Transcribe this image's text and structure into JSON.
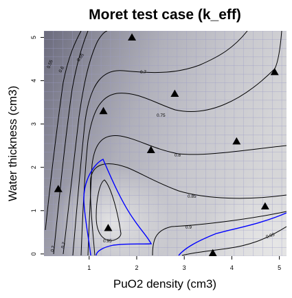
{
  "chart_data": {
    "type": "contour",
    "title": "Moret test case (k_eff)",
    "xlabel": "PuO2 density (cm3)",
    "ylabel": "Water thickness (cm3)",
    "xlim": [
      0.05,
      5.15
    ],
    "ylim": [
      -0.05,
      5.15
    ],
    "x_ticks": [
      1,
      2,
      3,
      4,
      5
    ],
    "y_ticks": [
      0,
      1,
      2,
      3,
      4,
      5
    ],
    "grid": true,
    "background": "grayscale gradient, darker at low PuO2 density / high water thickness",
    "contour_levels": [
      "0.2",
      "0.55",
      "0.6",
      "0.65",
      "0.7",
      "0.75",
      "0.8",
      "0.85",
      "0.9",
      "0.95"
    ],
    "highlight_contour": {
      "level": "0.95",
      "color": "#0000ff"
    },
    "design_points": [
      {
        "x": 0.35,
        "y": 1.5
      },
      {
        "x": 1.4,
        "y": 0.6
      },
      {
        "x": 1.3,
        "y": 3.3
      },
      {
        "x": 1.9,
        "y": 5.0
      },
      {
        "x": 2.3,
        "y": 2.4
      },
      {
        "x": 2.8,
        "y": 3.7
      },
      {
        "x": 3.6,
        "y": 0.02
      },
      {
        "x": 4.1,
        "y": 2.6
      },
      {
        "x": 4.7,
        "y": 1.1
      },
      {
        "x": 4.9,
        "y": 4.2
      }
    ]
  },
  "colors": {
    "contour_line": "#000000",
    "highlight_line": "#0000ff",
    "point_marker": "#000000",
    "grid_line": "#9c9cc8",
    "surface_dark": "#6a6a7c",
    "surface_light": "#e6e6e6"
  }
}
